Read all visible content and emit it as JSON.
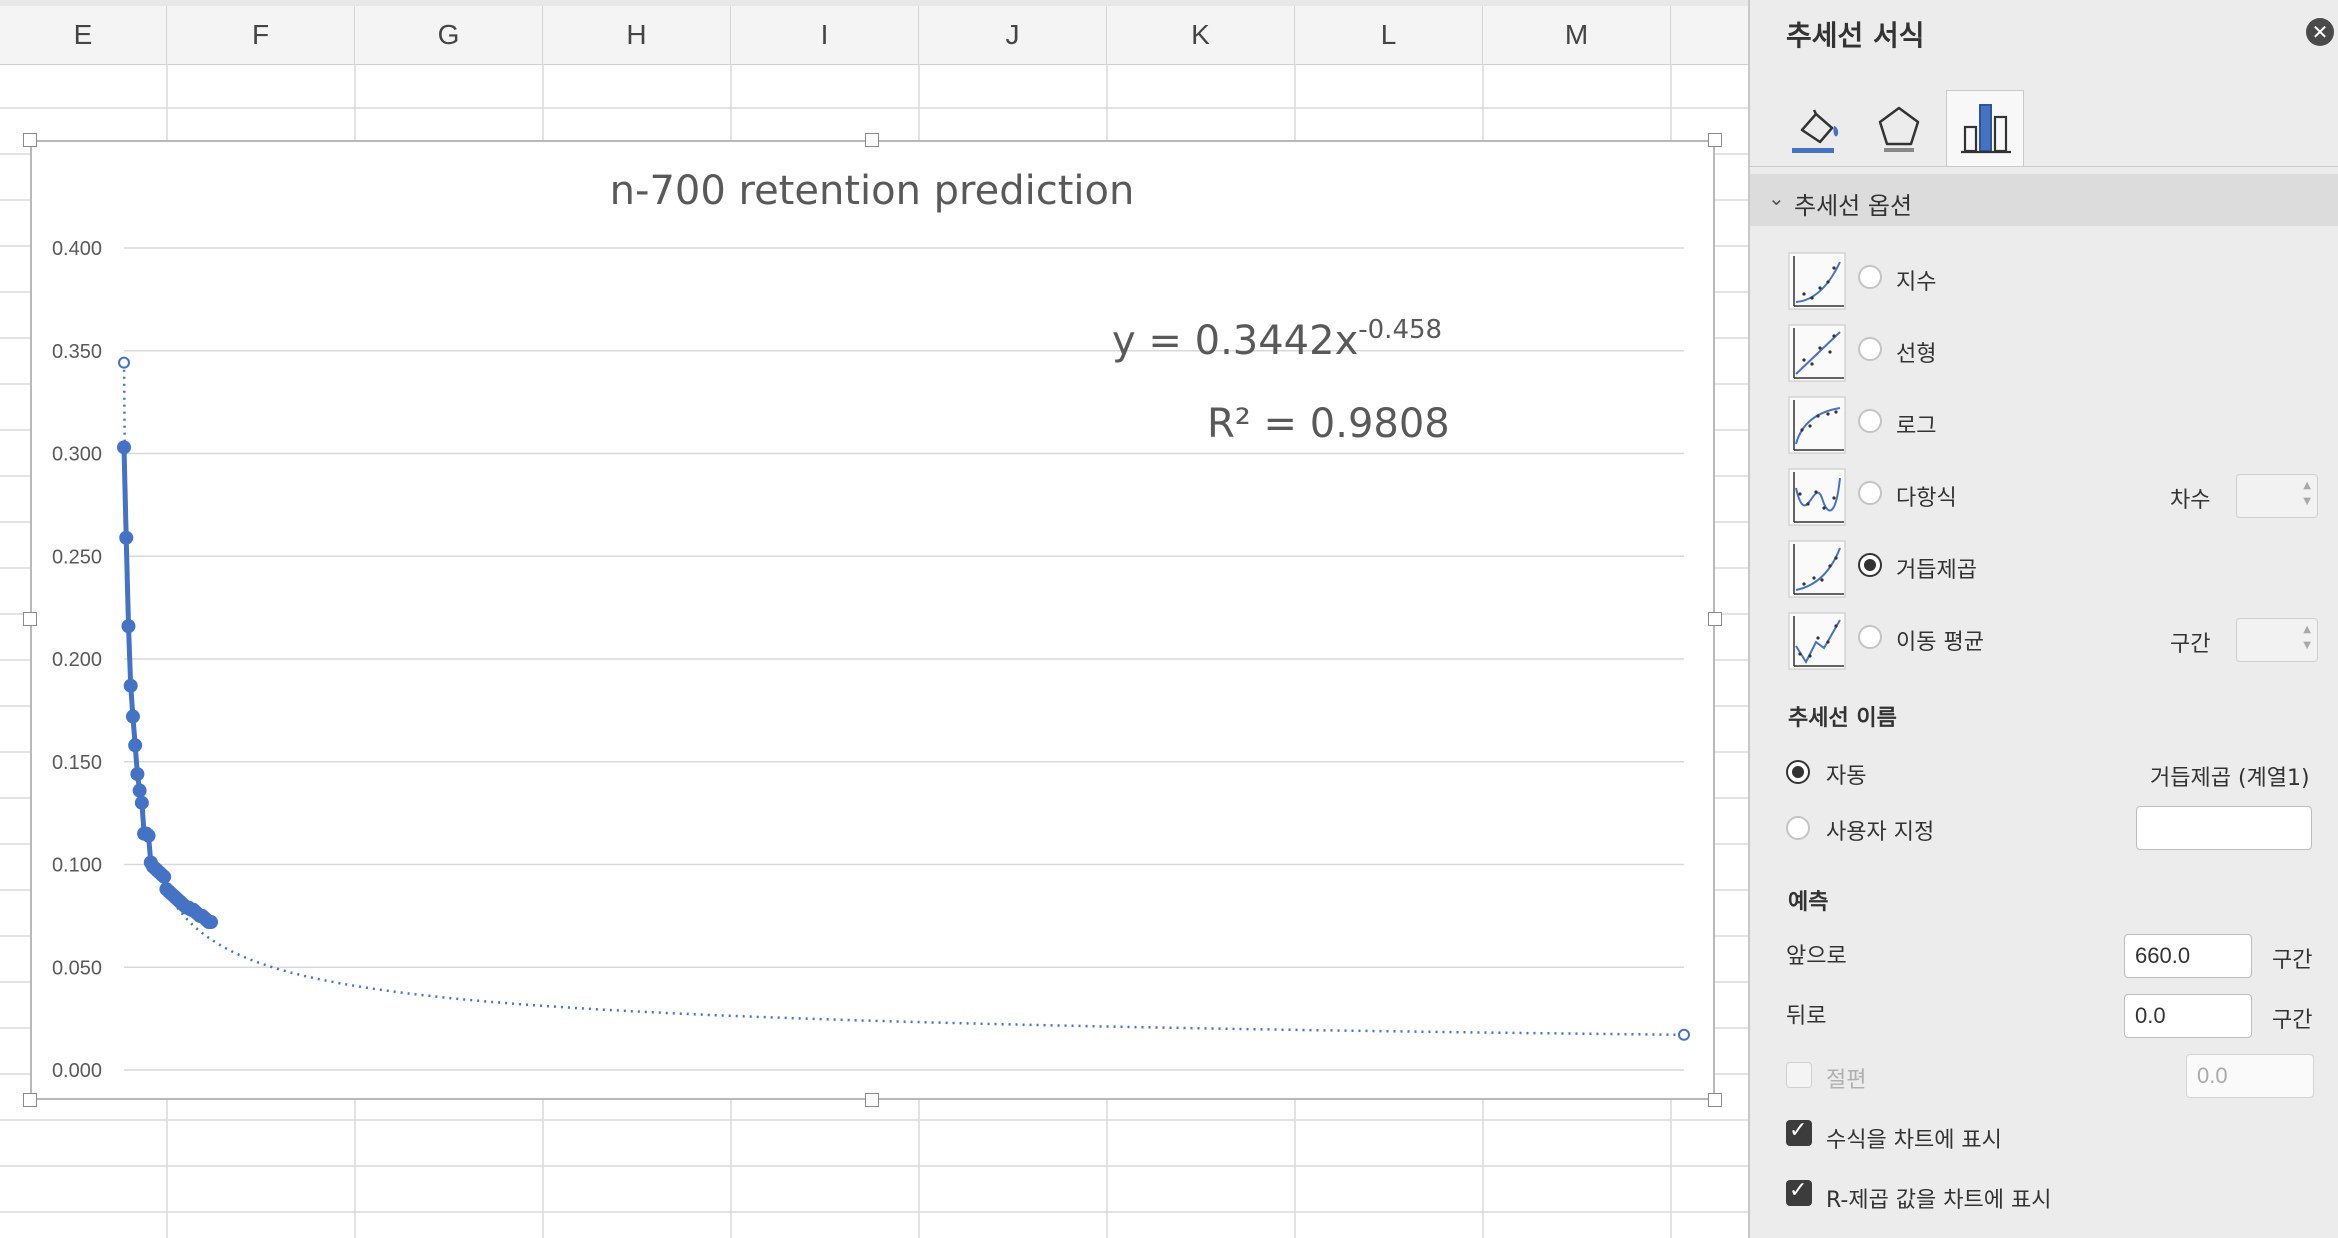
{
  "sheet": {
    "columns": [
      "E",
      "F",
      "G",
      "H",
      "I",
      "J",
      "K",
      "L",
      "M"
    ]
  },
  "chart_data": {
    "type": "scatter",
    "title": "n-700 retention prediction",
    "xlabel": "",
    "ylabel": "",
    "ylim": [
      0,
      0.4
    ],
    "xlim": [
      1,
      700
    ],
    "ytick_labels": [
      "0.000",
      "0.050",
      "0.100",
      "0.150",
      "0.200",
      "0.250",
      "0.300",
      "0.350",
      "0.400"
    ],
    "grid": true,
    "series": [
      {
        "x": [
          1,
          2,
          3,
          4,
          5,
          6,
          7,
          8,
          9,
          10,
          11,
          12,
          13,
          14,
          15,
          16,
          17,
          18,
          19,
          20,
          21,
          22,
          23,
          24,
          25,
          26,
          27,
          28,
          29,
          30,
          31,
          32,
          33,
          34,
          35,
          36,
          37,
          38,
          39,
          40
        ],
        "values": [
          0.303,
          0.259,
          0.216,
          0.187,
          0.172,
          0.158,
          0.144,
          0.136,
          0.13,
          0.115,
          0.115,
          0.114,
          0.101,
          0.099,
          0.098,
          0.097,
          0.096,
          0.095,
          0.094,
          0.088,
          0.087,
          0.086,
          0.085,
          0.084,
          0.083,
          0.082,
          0.081,
          0.08,
          0.079,
          0.079,
          0.078,
          0.078,
          0.077,
          0.076,
          0.075,
          0.075,
          0.074,
          0.073,
          0.072,
          0.072
        ],
        "color": "#4472c4"
      }
    ],
    "trendline": {
      "type": "power",
      "a": 0.3442,
      "b": -0.458,
      "forecast_forward": 660,
      "color": "#4472c4"
    },
    "equation_text": {
      "eq_main": "y = 0.3442x",
      "eq_exp": "-0.458",
      "r2_label": "R² = 0.9808"
    }
  },
  "pane": {
    "title": "추세선 서식",
    "close_icon": "close-icon",
    "tabs": [
      "fill-line-icon",
      "effects-icon",
      "series-options-icon"
    ],
    "section_label": "추세선 옵션",
    "trend_types": [
      {
        "label": "지수",
        "selected": false
      },
      {
        "label": "선형",
        "selected": false
      },
      {
        "label": "로그",
        "selected": false
      },
      {
        "label": "다항식",
        "selected": false
      },
      {
        "label": "거듭제곱",
        "selected": true
      },
      {
        "label": "이동 평균",
        "selected": false
      }
    ],
    "order_label": "차수",
    "period_label": "구간",
    "name_section": "추세선 이름",
    "auto_label": "자동",
    "auto_value": "거듭제곱 (계열1)",
    "custom_label": "사용자 지정",
    "forecast_section": "예측",
    "forward_label": "앞으로",
    "forward_value": "660.0",
    "forward_unit": "구간",
    "backward_label": "뒤로",
    "backward_value": "0.0",
    "backward_unit": "구간",
    "intercept_label": "절편",
    "intercept_value": "0.0",
    "show_equation_label": "수식을 차트에 표시",
    "show_r2_label": "R-제곱 값을 차트에 표시"
  }
}
